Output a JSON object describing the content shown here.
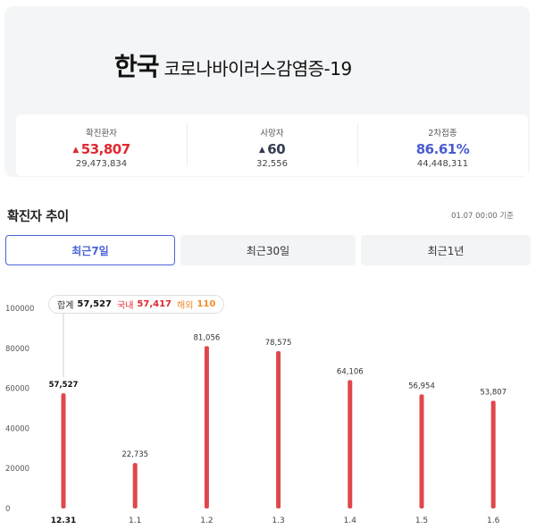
{
  "header": {
    "country": "한국",
    "disease": "코로나바이러스감염증-19"
  },
  "stats": [
    {
      "label": "확진환자",
      "value": "53,807",
      "total": "29,473,834",
      "color": "#e0282f"
    },
    {
      "label": "사망자",
      "value": "60",
      "total": "32,556",
      "color": "#333b4e"
    },
    {
      "label": "2차접종",
      "value": "86.61%",
      "total": "44,448,311",
      "color": "#4a5bd0"
    }
  ],
  "section": {
    "title": "확진자 추이",
    "timestamp": "01.07 00:00 기준"
  },
  "tabs": [
    {
      "label": "최근7일",
      "active": true
    },
    {
      "label": "최근30일",
      "active": false
    },
    {
      "label": "최근1년",
      "active": false
    }
  ],
  "tooltip": {
    "total_label": "합계",
    "total": "57,527",
    "domestic_label": "국내",
    "domestic": "57,417",
    "overseas_label": "해외",
    "overseas": "110"
  },
  "chart_data": {
    "type": "bar",
    "categories": [
      "12.31",
      "1.1",
      "1.2",
      "1.3",
      "1.4",
      "1.5",
      "1.6"
    ],
    "values": [
      57527,
      22735,
      81056,
      78575,
      64106,
      56954,
      53807
    ],
    "value_labels": [
      "57,527",
      "22,735",
      "81,056",
      "78,575",
      "64,106",
      "56,954",
      "53,807"
    ],
    "selected_index": 0,
    "yticks": [
      0,
      20000,
      40000,
      60000,
      80000,
      100000
    ],
    "ylim": [
      0,
      100000
    ],
    "bar_color": "#e0474c",
    "grid": false
  }
}
